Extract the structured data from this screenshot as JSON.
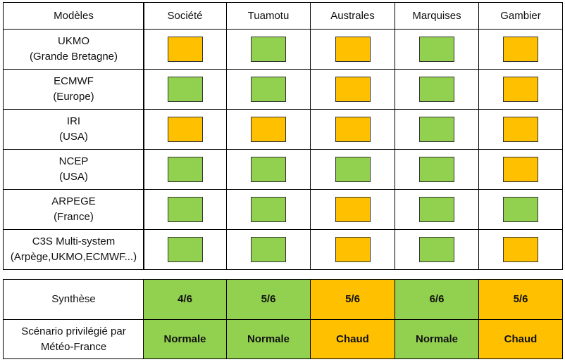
{
  "table": {
    "header": [
      "Modèles",
      "Société",
      "Tuamotu",
      "Australes",
      "Marquises",
      "Gambier"
    ],
    "rows": [
      {
        "label": [
          "UKMO",
          "(Grande Bretagne)"
        ],
        "cells": [
          "#ffc000",
          "#92d050",
          "#ffc000",
          "#92d050",
          "#ffc000"
        ]
      },
      {
        "label": [
          "ECMWF",
          "(Europe)"
        ],
        "cells": [
          "#92d050",
          "#92d050",
          "#ffc000",
          "#92d050",
          "#ffc000"
        ]
      },
      {
        "label": [
          "IRI",
          "(USA)"
        ],
        "cells": [
          "#ffc000",
          "#ffc000",
          "#ffc000",
          "#92d050",
          "#ffc000"
        ]
      },
      {
        "label": [
          "NCEP",
          "(USA)"
        ],
        "cells": [
          "#92d050",
          "#92d050",
          "#92d050",
          "#92d050",
          "#ffc000"
        ]
      },
      {
        "label": [
          "ARPEGE",
          "(France)"
        ],
        "cells": [
          "#92d050",
          "#92d050",
          "#ffc000",
          "#92d050",
          "#92d050"
        ]
      },
      {
        "label": [
          "C3S Multi-system",
          "(Arpège,UKMO,ECMWF...)"
        ],
        "cells": [
          "#92d050",
          "#92d050",
          "#ffc000",
          "#92d050",
          "#ffc000"
        ]
      }
    ]
  },
  "summary": {
    "rows": [
      {
        "label": [
          "Synthèse"
        ],
        "cells": [
          {
            "text": "4/6",
            "color": "#92d050"
          },
          {
            "text": "5/6",
            "color": "#92d050"
          },
          {
            "text": "5/6",
            "color": "#ffc000"
          },
          {
            "text": "6/6",
            "color": "#92d050"
          },
          {
            "text": "5/6",
            "color": "#ffc000"
          }
        ]
      },
      {
        "label": [
          "Scénario privilégié par",
          "Météo-France"
        ],
        "cells": [
          {
            "text": "Normale",
            "color": "#92d050"
          },
          {
            "text": "Normale",
            "color": "#92d050"
          },
          {
            "text": "Chaud",
            "color": "#ffc000"
          },
          {
            "text": "Normale",
            "color": "#92d050"
          },
          {
            "text": "Chaud",
            "color": "#ffc000"
          }
        ]
      }
    ]
  }
}
